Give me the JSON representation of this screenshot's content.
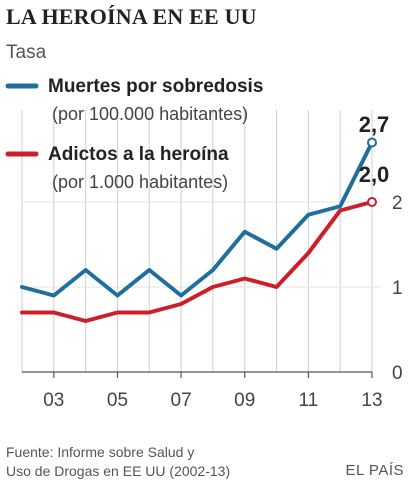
{
  "chart_data": {
    "type": "line",
    "title": "LA HEROÍNA EN EE UU",
    "subtitle": "Tasa",
    "x": [
      2002,
      2003,
      2004,
      2005,
      2006,
      2007,
      2008,
      2009,
      2010,
      2011,
      2012,
      2013
    ],
    "x_tick_labels": [
      "03",
      "05",
      "07",
      "09",
      "11",
      "13"
    ],
    "x_tick_values": [
      2003,
      2005,
      2007,
      2009,
      2011,
      2013
    ],
    "y_tick_labels": [
      "0",
      "1",
      "2"
    ],
    "y_tick_values": [
      0,
      1,
      2
    ],
    "ylim": [
      0,
      3.2
    ],
    "grid": "vertical",
    "legend": "top-left",
    "series": [
      {
        "name": "Muertes por sobredosis",
        "unit": "(por 100.000 habitantes)",
        "color": "#1f6e9c",
        "values": [
          1.0,
          0.9,
          1.2,
          0.9,
          1.2,
          0.9,
          1.2,
          1.65,
          1.45,
          1.85,
          1.95,
          2.7
        ],
        "end_label": "2,7"
      },
      {
        "name": "Adictos a la heroína",
        "unit": "(por 1.000 habitantes)",
        "color": "#cc1f2a",
        "values": [
          0.7,
          0.7,
          0.6,
          0.7,
          0.7,
          0.8,
          1.0,
          1.1,
          1.0,
          1.4,
          1.9,
          2.0
        ],
        "end_label": "2,0"
      }
    ]
  },
  "footer": {
    "source_line1": "Fuente: Informe sobre Salud y",
    "source_line2": "Uso de Drogas en EE UU (2002-13)",
    "brand": "EL PAÍS"
  }
}
